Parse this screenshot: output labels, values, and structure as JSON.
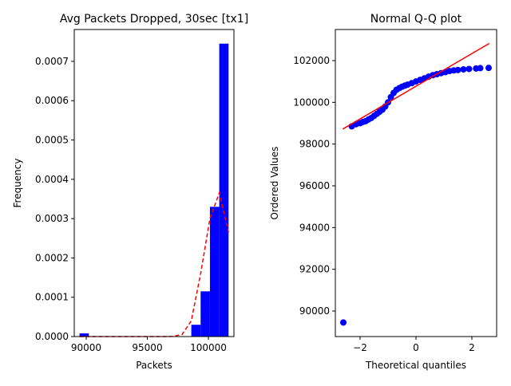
{
  "chart_data": [
    {
      "type": "histogram",
      "title": "Avg Packets Dropped, 30sec [tx1]",
      "x_label": "Packets",
      "y_label": "Frequency",
      "bins": [
        89450,
        90212.5,
        90975,
        91737.5,
        92500,
        93262.5,
        94025,
        94787.5,
        95550,
        96312.5,
        97075,
        97837.5,
        98600,
        99362.5,
        100125,
        100887.5,
        101650
      ],
      "values": [
        8e-06,
        0,
        0,
        0,
        0,
        0,
        0,
        0,
        0,
        0,
        0,
        0,
        3e-05,
        0.000115,
        0.00033,
        0.000745
      ],
      "color": "#0000ff",
      "curve": {
        "color": "#ff0000",
        "values": [
          0,
          0,
          0,
          0,
          0,
          0,
          0,
          0,
          0,
          0,
          5e-07,
          5e-06,
          4e-05,
          0.00016,
          0.0003,
          0.000365,
          0.000265
        ]
      },
      "xlim": [
        89020,
        102090
      ],
      "xticks": [
        90000,
        95000,
        100000
      ],
      "ylim": [
        0,
        0.000781
      ],
      "yticks": [
        {
          "value": 0,
          "label": "0.0000"
        },
        {
          "value": 0.0001,
          "label": "0.0001"
        },
        {
          "value": 0.0002,
          "label": "0.0002"
        },
        {
          "value": 0.0003,
          "label": "0.0003"
        },
        {
          "value": 0.0004,
          "label": "0.0004"
        },
        {
          "value": 0.0005,
          "label": "0.0005"
        },
        {
          "value": 0.0006,
          "label": "0.0006"
        },
        {
          "value": 0.0007,
          "label": "0.0007"
        }
      ]
    },
    {
      "type": "scatter",
      "title": "Normal Q-Q plot",
      "x_label": "Theoretical quantiles",
      "y_label": "Ordered Values",
      "x": [
        -2.6,
        -2.3,
        -2.15,
        -2.0,
        -1.9,
        -1.8,
        -1.7,
        -1.6,
        -1.5,
        -1.4,
        -1.3,
        -1.2,
        -1.1,
        -1.0,
        -0.9,
        -0.8,
        -0.7,
        -0.6,
        -0.5,
        -0.4,
        -0.3,
        -0.15,
        0,
        0.15,
        0.3,
        0.45,
        0.6,
        0.75,
        0.9,
        1.05,
        1.2,
        1.35,
        1.5,
        1.7,
        1.9,
        2.15,
        2.3,
        2.6
      ],
      "values": [
        89450,
        98850,
        98950,
        99000,
        99060,
        99100,
        99180,
        99250,
        99350,
        99450,
        99550,
        99650,
        99800,
        100000,
        100250,
        100450,
        100600,
        100680,
        100750,
        100800,
        100850,
        100920,
        101000,
        101080,
        101150,
        101230,
        101300,
        101350,
        101400,
        101450,
        101500,
        101530,
        101550,
        101580,
        101600,
        101620,
        101640,
        101650
      ],
      "color": "#0000ff",
      "fit": {
        "color": "#ff0000",
        "x": [
          -2.62,
          2.62
        ],
        "values": [
          98720,
          102820
        ]
      },
      "xlim": [
        -2.886,
        2.886
      ],
      "xticks": [
        {
          "value": -2,
          "label": "−2"
        },
        0,
        2
      ],
      "ylim": [
        88777,
        103490
      ],
      "yticks": [
        90000,
        92000,
        94000,
        96000,
        98000,
        100000,
        102000
      ]
    }
  ]
}
